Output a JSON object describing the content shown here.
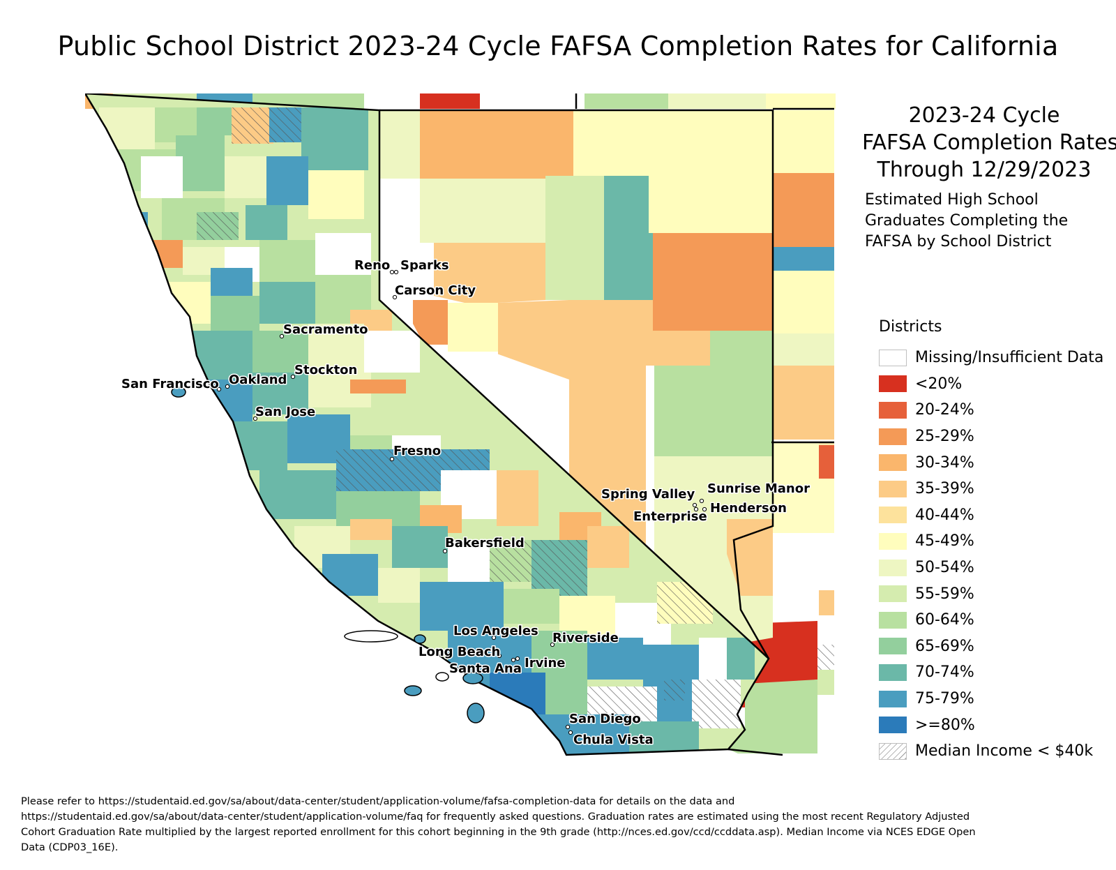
{
  "title": "Public School District 2023-24 Cycle FAFSA Completion Rates for California",
  "legend": {
    "heading_lines": [
      "2023-24 Cycle",
      "FAFSA Completion Rates",
      "Through 12/29/2023"
    ],
    "description_lines": [
      "Estimated High School",
      "Graduates Completing the",
      "FAFSA by School District"
    ],
    "title": "Districts",
    "items": [
      {
        "label": "Missing/Insufficient Data",
        "color": "#ffffff",
        "kind": "nodata"
      },
      {
        "label": "<20%",
        "color": "#d7301f",
        "kind": "fill"
      },
      {
        "label": "20-24%",
        "color": "#e6603a",
        "kind": "fill"
      },
      {
        "label": "25-29%",
        "color": "#f49a57",
        "kind": "fill"
      },
      {
        "label": "30-34%",
        "color": "#fab66c",
        "kind": "fill"
      },
      {
        "label": "35-39%",
        "color": "#fccb86",
        "kind": "fill"
      },
      {
        "label": "40-44%",
        "color": "#fde29c",
        "kind": "fill"
      },
      {
        "label": "45-49%",
        "color": "#fffdbd",
        "kind": "fill"
      },
      {
        "label": "50-54%",
        "color": "#eef6c2",
        "kind": "fill"
      },
      {
        "label": "55-59%",
        "color": "#d5ecaf",
        "kind": "fill"
      },
      {
        "label": "60-64%",
        "color": "#b8e0a0",
        "kind": "fill"
      },
      {
        "label": "65-69%",
        "color": "#93cf9d",
        "kind": "fill"
      },
      {
        "label": "70-74%",
        "color": "#6bb8a8",
        "kind": "fill"
      },
      {
        "label": "75-79%",
        "color": "#4a9dbf",
        "kind": "fill"
      },
      {
        "label": ">=80%",
        "color": "#2b7bba",
        "kind": "fill"
      },
      {
        "label": "Median Income < $40k",
        "color": "#9a9a9a",
        "kind": "hatch"
      }
    ]
  },
  "cities": [
    "Reno",
    "Sparks",
    "Carson City",
    "Sacramento",
    "Stockton",
    "San Francisco",
    "Oakland",
    "San Jose",
    "Fresno",
    "Spring Valley",
    "Sunrise Manor",
    "Henderson",
    "Enterprise",
    "Bakersfield",
    "Los Angeles",
    "Riverside",
    "Long Beach",
    "Irvine",
    "Santa Ana",
    "San Diego",
    "Chula Vista"
  ],
  "footnote_lines": [
    "Please refer to https://studentaid.ed.gov/sa/about/data-center/student/application-volume/fafsa-completion-data for details on the data and",
    "https://studentaid.ed.gov/sa/about/data-center/student/application-volume/faq for frequently asked questions. Graduation rates are estimated using the most recent Regulatory Adjusted",
    "Cohort Graduation Rate multiplied by the largest reported enrollment for this cohort beginning in the 9th grade (http://nces.ed.gov/ccd/ccddata.asp). Median Income via NCES EDGE Open",
    "Data (CDP03_16E)."
  ]
}
